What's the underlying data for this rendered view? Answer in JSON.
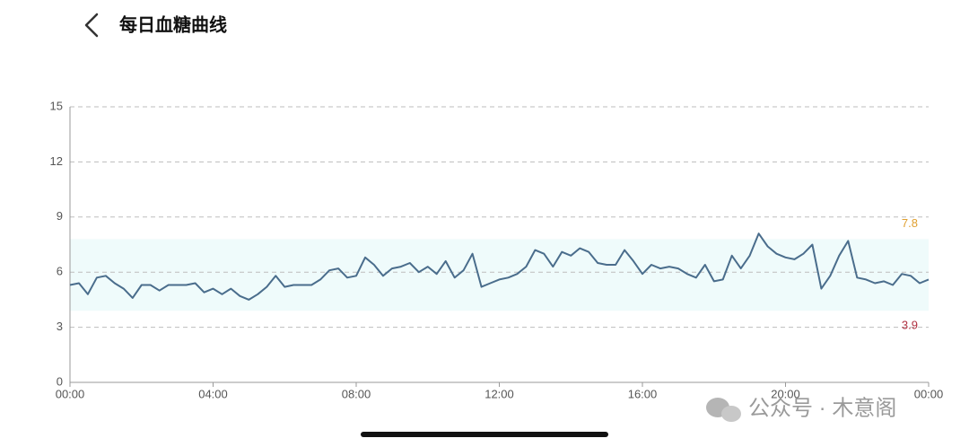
{
  "header": {
    "title": "每日血糖曲线"
  },
  "chart_data": {
    "type": "line",
    "x": [
      0,
      0.25,
      0.5,
      0.75,
      1,
      1.25,
      1.5,
      1.75,
      2,
      2.25,
      2.5,
      2.75,
      3,
      3.25,
      3.5,
      3.75,
      4,
      4.25,
      4.5,
      4.75,
      5,
      5.25,
      5.5,
      5.75,
      6,
      6.25,
      6.5,
      6.75,
      7,
      7.25,
      7.5,
      7.75,
      8,
      8.25,
      8.5,
      8.75,
      9,
      9.25,
      9.5,
      9.75,
      10,
      10.25,
      10.5,
      10.75,
      11,
      11.25,
      11.5,
      11.75,
      12,
      12.25,
      12.5,
      12.75,
      13,
      13.25,
      13.5,
      13.75,
      14,
      14.25,
      14.5,
      14.75,
      15,
      15.25,
      15.5,
      15.75,
      16,
      16.25,
      16.5,
      16.75,
      17,
      17.25,
      17.5,
      17.75,
      18,
      18.25,
      18.5,
      18.75,
      19,
      19.25,
      19.5,
      19.75,
      20,
      20.25,
      20.5,
      20.75,
      21,
      21.25,
      21.5,
      21.75,
      22,
      22.25,
      22.5,
      22.75,
      23,
      23.25,
      23.5,
      23.75,
      24
    ],
    "series": [
      {
        "color": "#4a6d8c",
        "values": [
          5.3,
          5.4,
          4.8,
          5.7,
          5.8,
          5.4,
          5.1,
          4.6,
          5.3,
          5.3,
          5.0,
          5.3,
          5.3,
          5.3,
          5.4,
          4.9,
          5.1,
          4.8,
          5.1,
          4.7,
          4.5,
          4.8,
          5.2,
          5.8,
          5.2,
          5.3,
          5.3,
          5.3,
          5.6,
          6.1,
          6.2,
          5.7,
          5.8,
          6.8,
          6.4,
          5.8,
          6.2,
          6.3,
          6.5,
          6.0,
          6.3,
          5.9,
          6.6,
          5.7,
          6.1,
          7.0,
          5.2,
          5.4,
          5.6,
          5.7,
          5.9,
          6.3,
          7.2,
          7.0,
          6.3,
          7.1,
          6.9,
          7.3,
          7.1,
          6.5,
          6.4,
          6.4,
          7.2,
          6.6,
          5.9,
          6.4,
          6.2,
          6.3,
          6.2,
          5.9,
          5.7,
          6.4,
          5.5,
          5.6,
          6.9,
          6.2,
          6.9,
          8.1,
          7.4,
          7.0,
          6.8,
          6.7,
          7.0,
          7.5,
          5.1,
          5.8,
          6.9,
          7.7,
          5.7,
          5.6,
          5.4,
          5.5,
          5.3,
          5.9,
          5.8,
          5.4,
          5.6
        ]
      }
    ],
    "xlim": [
      0,
      24
    ],
    "xticks": [
      {
        "value": 0,
        "label": "00:00"
      },
      {
        "value": 4,
        "label": "04:00"
      },
      {
        "value": 8,
        "label": "08:00"
      },
      {
        "value": 12,
        "label": "12:00"
      },
      {
        "value": 16,
        "label": "16:00"
      },
      {
        "value": 20,
        "label": "20:00"
      },
      {
        "value": 24,
        "label": "00:00"
      }
    ],
    "ylim": [
      0,
      15
    ],
    "yticks": [
      0,
      3,
      6,
      9,
      12,
      15
    ],
    "grid": true,
    "target_range": {
      "high": 7.8,
      "low": 3.9,
      "high_color": "#e0a030",
      "low_color": "#b03040",
      "fill": "#effbfb"
    }
  },
  "watermark": "公众号 · 木意阁"
}
